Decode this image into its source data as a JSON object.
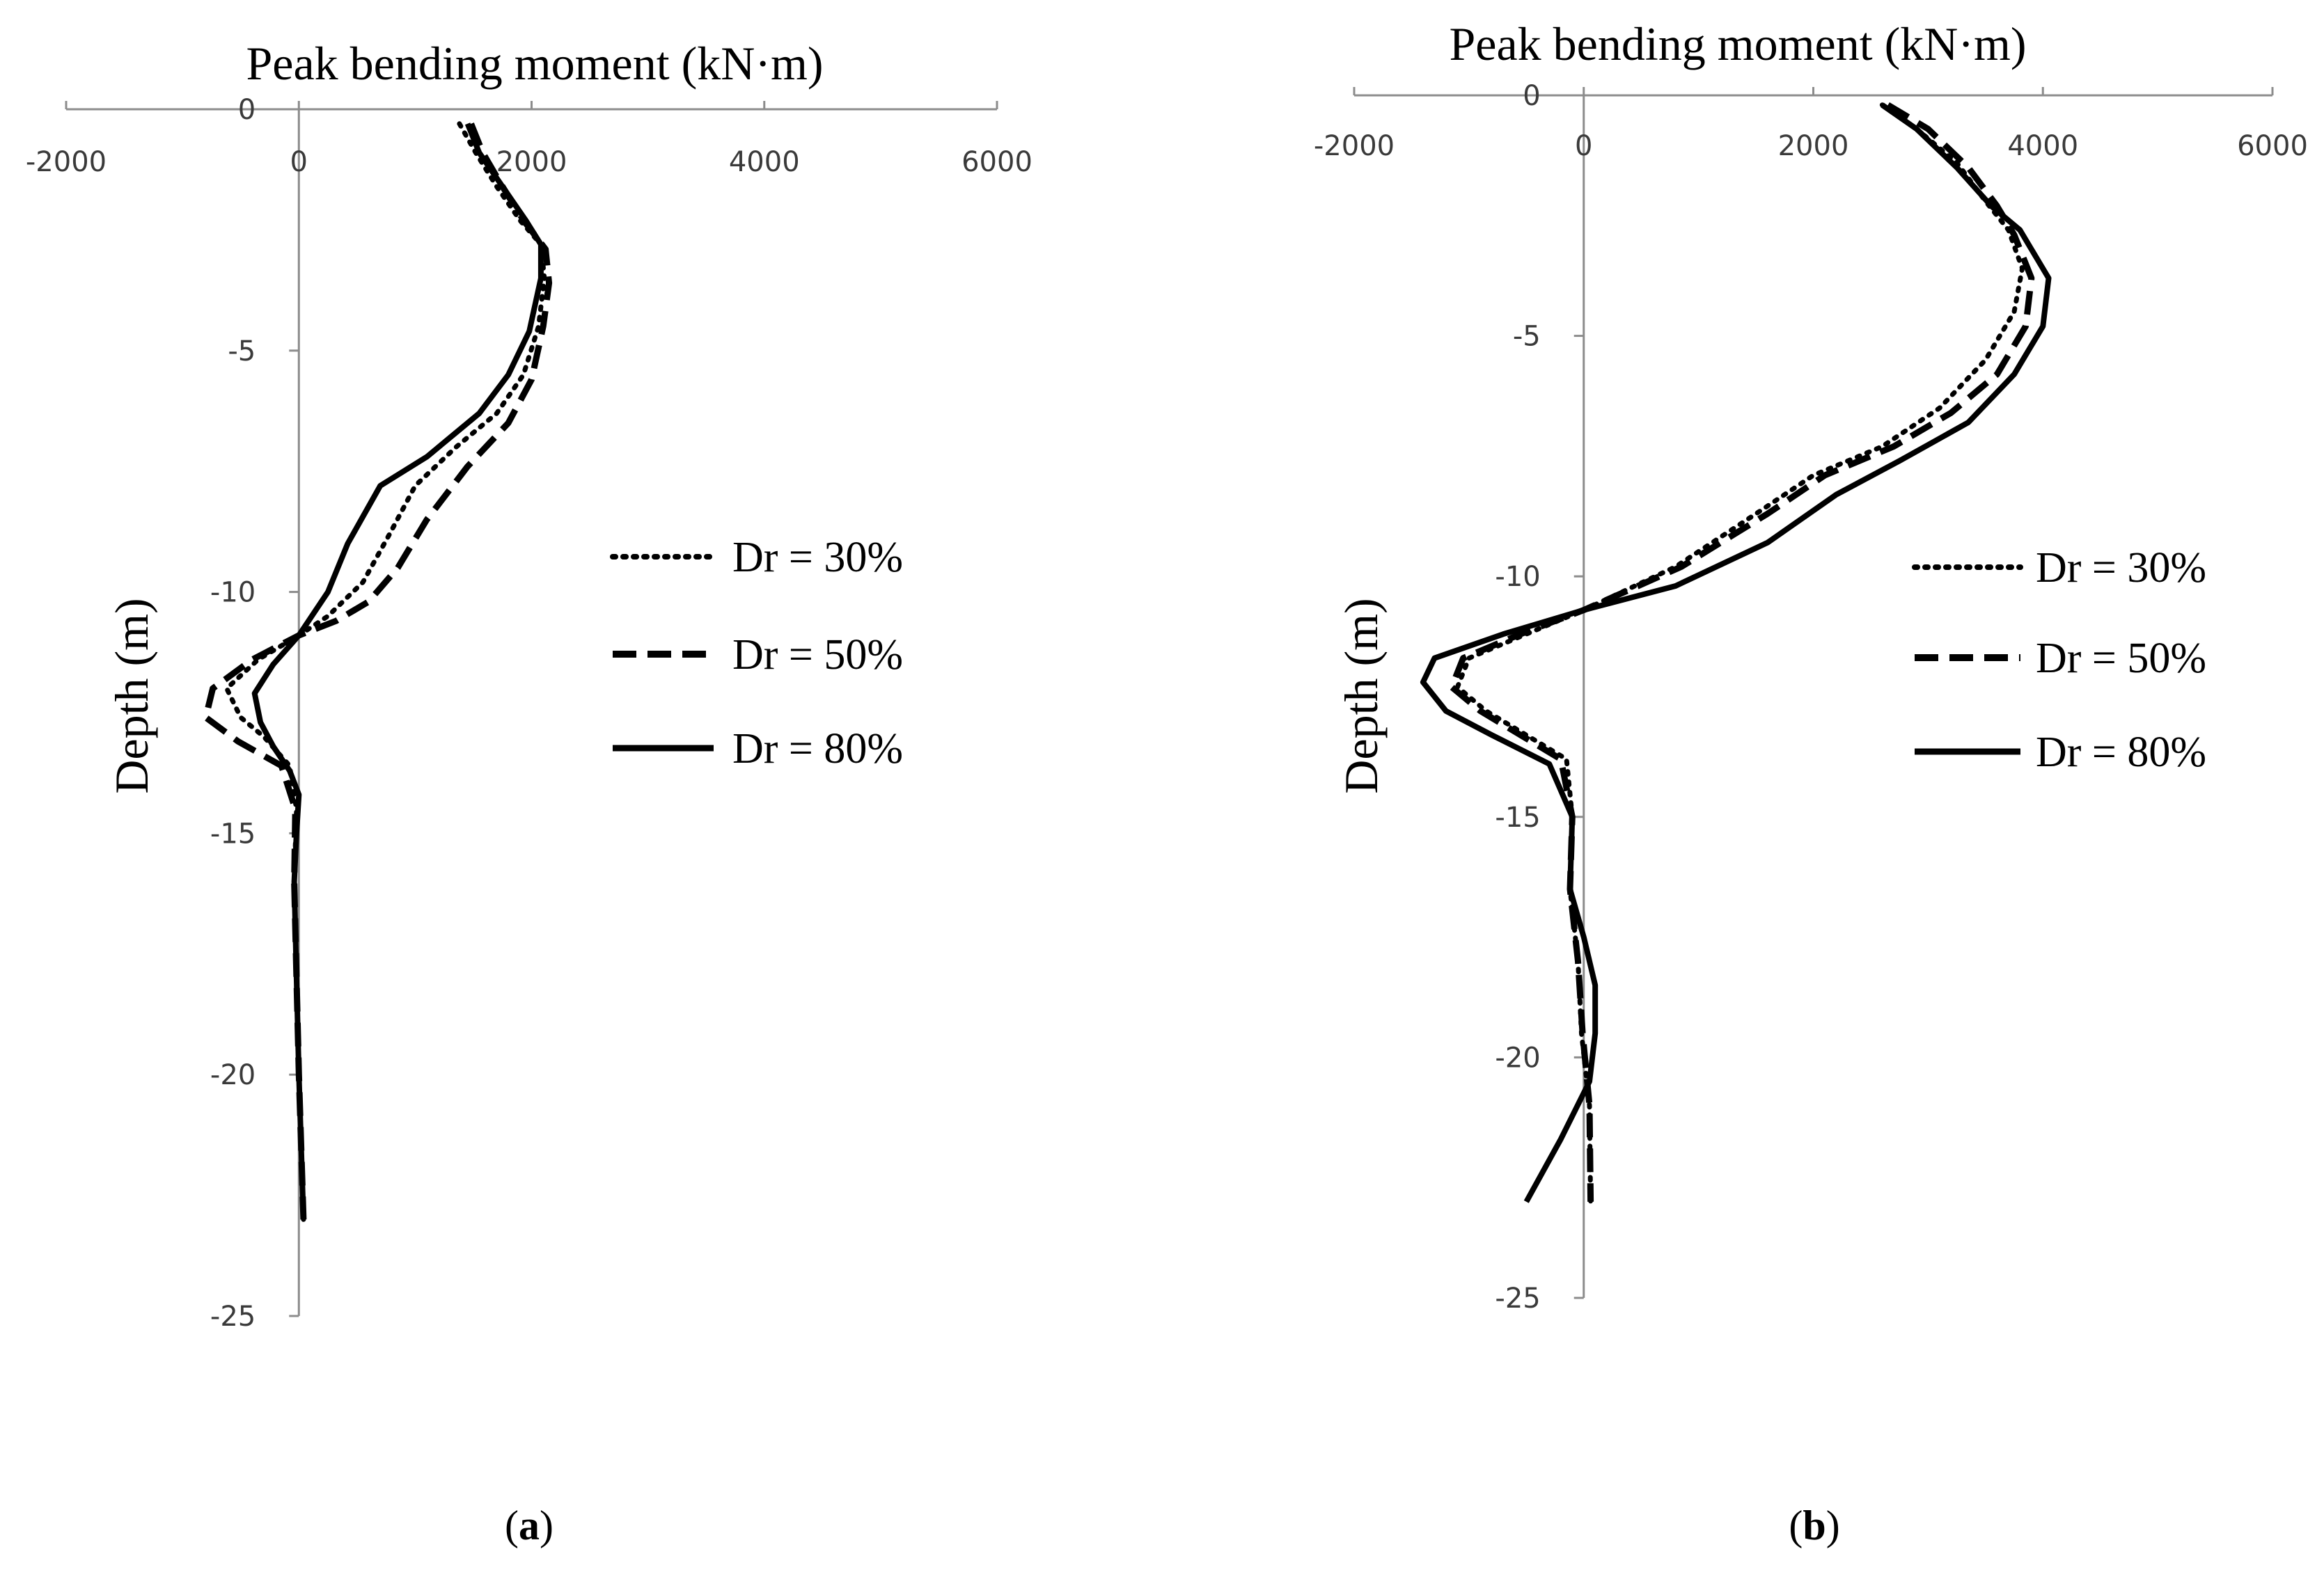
{
  "chart_data": [
    {
      "type": "line",
      "panel_label": "a",
      "xlabel": "Peak bending moment (kN·m)",
      "ylabel": "Depth (m)",
      "xlim": [
        -2000,
        6000
      ],
      "ylim": [
        -25,
        0
      ],
      "xticks": [
        -2000,
        0,
        2000,
        4000,
        6000
      ],
      "yticks": [
        0,
        -5,
        -10,
        -15,
        -20,
        -25
      ],
      "legend_position": "right",
      "grid": false,
      "series": [
        {
          "name": "Dr = 30%",
          "style": "dotted",
          "points": [
            [
              1380,
              -0.3
            ],
            [
              1520,
              -0.9
            ],
            [
              1700,
              -1.6
            ],
            [
              1900,
              -2.3
            ],
            [
              2080,
              -2.8
            ],
            [
              2110,
              -3.5
            ],
            [
              2060,
              -4.5
            ],
            [
              1930,
              -5.5
            ],
            [
              1700,
              -6.3
            ],
            [
              1350,
              -7.0
            ],
            [
              1000,
              -7.8
            ],
            [
              780,
              -8.8
            ],
            [
              550,
              -9.8
            ],
            [
              250,
              -10.5
            ],
            [
              0,
              -10.9
            ],
            [
              -350,
              -11.4
            ],
            [
              -620,
              -12.0
            ],
            [
              -500,
              -12.6
            ],
            [
              -300,
              -13.0
            ],
            [
              -80,
              -13.6
            ],
            [
              -20,
              -14.5
            ],
            [
              -40,
              -16
            ],
            [
              -20,
              -18
            ],
            [
              0,
              -20
            ],
            [
              20,
              -21.5
            ],
            [
              40,
              -23
            ]
          ]
        },
        {
          "name": "Dr = 50%",
          "style": "dashed",
          "points": [
            [
              1480,
              -0.3
            ],
            [
              1580,
              -0.9
            ],
            [
              1750,
              -1.6
            ],
            [
              1930,
              -2.3
            ],
            [
              2120,
              -2.9
            ],
            [
              2150,
              -3.6
            ],
            [
              2100,
              -4.5
            ],
            [
              2000,
              -5.6
            ],
            [
              1800,
              -6.5
            ],
            [
              1450,
              -7.4
            ],
            [
              1100,
              -8.5
            ],
            [
              850,
              -9.5
            ],
            [
              600,
              -10.2
            ],
            [
              320,
              -10.6
            ],
            [
              0,
              -10.9
            ],
            [
              -400,
              -11.4
            ],
            [
              -740,
              -12.0
            ],
            [
              -800,
              -12.6
            ],
            [
              -520,
              -13.1
            ],
            [
              -150,
              -13.6
            ],
            [
              -30,
              -14.5
            ],
            [
              -40,
              -16
            ],
            [
              -20,
              -18
            ],
            [
              0,
              -20
            ],
            [
              20,
              -21.5
            ],
            [
              40,
              -23
            ]
          ]
        },
        {
          "name": "Dr = 80%",
          "style": "solid",
          "points": [
            [
              1450,
              -0.3
            ],
            [
              1550,
              -0.9
            ],
            [
              1750,
              -1.6
            ],
            [
              1950,
              -2.3
            ],
            [
              2080,
              -2.8
            ],
            [
              2080,
              -3.5
            ],
            [
              1980,
              -4.6
            ],
            [
              1800,
              -5.5
            ],
            [
              1550,
              -6.3
            ],
            [
              1100,
              -7.2
            ],
            [
              700,
              -7.8
            ],
            [
              420,
              -9.0
            ],
            [
              250,
              -10.0
            ],
            [
              0,
              -10.9
            ],
            [
              -220,
              -11.5
            ],
            [
              -380,
              -12.1
            ],
            [
              -330,
              -12.7
            ],
            [
              -220,
              -13.2
            ],
            [
              -80,
              -13.7
            ],
            [
              0,
              -14.2
            ],
            [
              -20,
              -15
            ],
            [
              -40,
              -16
            ],
            [
              -20,
              -18
            ],
            [
              0,
              -20
            ],
            [
              20,
              -21.5
            ],
            [
              40,
              -23
            ]
          ]
        }
      ]
    },
    {
      "type": "line",
      "panel_label": "b",
      "xlabel": "Peak bending moment (kN·m)",
      "ylabel": "Depth (m)",
      "xlim": [
        -2000,
        6000
      ],
      "ylim": [
        -25,
        0
      ],
      "xticks": [
        -2000,
        0,
        2000,
        4000,
        6000
      ],
      "yticks": [
        0,
        -5,
        -10,
        -15,
        -20,
        -25
      ],
      "legend_position": "right",
      "grid": false,
      "series": [
        {
          "name": "Dr = 30%",
          "style": "dotted",
          "points": [
            [
              2600,
              -0.2
            ],
            [
              2900,
              -0.7
            ],
            [
              3250,
              -1.4
            ],
            [
              3500,
              -2.2
            ],
            [
              3700,
              -2.8
            ],
            [
              3820,
              -3.6
            ],
            [
              3750,
              -4.5
            ],
            [
              3500,
              -5.5
            ],
            [
              3100,
              -6.5
            ],
            [
              2600,
              -7.3
            ],
            [
              2000,
              -7.9
            ],
            [
              1500,
              -8.7
            ],
            [
              800,
              -9.8
            ],
            [
              0,
              -10.7
            ],
            [
              -500,
              -11.2
            ],
            [
              -1000,
              -11.7
            ],
            [
              -1100,
              -12.3
            ],
            [
              -850,
              -12.8
            ],
            [
              -500,
              -13.3
            ],
            [
              -150,
              -13.8
            ],
            [
              -100,
              -15
            ],
            [
              -120,
              -16.5
            ],
            [
              -50,
              -18
            ],
            [
              -20,
              -19.5
            ],
            [
              50,
              -21
            ],
            [
              60,
              -23
            ]
          ]
        },
        {
          "name": "Dr = 50%",
          "style": "dashed",
          "points": [
            [
              2650,
              -0.2
            ],
            [
              3000,
              -0.7
            ],
            [
              3350,
              -1.5
            ],
            [
              3600,
              -2.3
            ],
            [
              3750,
              -2.9
            ],
            [
              3900,
              -3.8
            ],
            [
              3850,
              -4.8
            ],
            [
              3600,
              -5.8
            ],
            [
              3200,
              -6.6
            ],
            [
              2700,
              -7.3
            ],
            [
              2100,
              -7.9
            ],
            [
              1600,
              -8.7
            ],
            [
              850,
              -9.8
            ],
            [
              0,
              -10.7
            ],
            [
              -550,
              -11.2
            ],
            [
              -1050,
              -11.7
            ],
            [
              -1150,
              -12.3
            ],
            [
              -900,
              -12.8
            ],
            [
              -550,
              -13.3
            ],
            [
              -200,
              -13.8
            ],
            [
              -100,
              -15
            ],
            [
              -120,
              -16.5
            ],
            [
              -50,
              -18
            ],
            [
              -10,
              -19.5
            ],
            [
              50,
              -21
            ],
            [
              60,
              -23
            ]
          ]
        },
        {
          "name": "Dr = 80%",
          "style": "solid",
          "points": [
            [
              2600,
              -0.2
            ],
            [
              2900,
              -0.7
            ],
            [
              3250,
              -1.5
            ],
            [
              3550,
              -2.3
            ],
            [
              3800,
              -2.8
            ],
            [
              4050,
              -3.8
            ],
            [
              4000,
              -4.8
            ],
            [
              3750,
              -5.8
            ],
            [
              3350,
              -6.8
            ],
            [
              2750,
              -7.6
            ],
            [
              2200,
              -8.3
            ],
            [
              1600,
              -9.3
            ],
            [
              800,
              -10.2
            ],
            [
              0,
              -10.7
            ],
            [
              -700,
              -11.2
            ],
            [
              -1300,
              -11.7
            ],
            [
              -1400,
              -12.2
            ],
            [
              -1200,
              -12.8
            ],
            [
              -800,
              -13.3
            ],
            [
              -300,
              -13.9
            ],
            [
              -100,
              -15
            ],
            [
              -120,
              -16.5
            ],
            [
              0,
              -17.5
            ],
            [
              100,
              -18.5
            ],
            [
              100,
              -19.5
            ],
            [
              50,
              -20.5
            ],
            [
              -200,
              -21.7
            ],
            [
              -500,
              -23
            ]
          ]
        }
      ]
    }
  ]
}
